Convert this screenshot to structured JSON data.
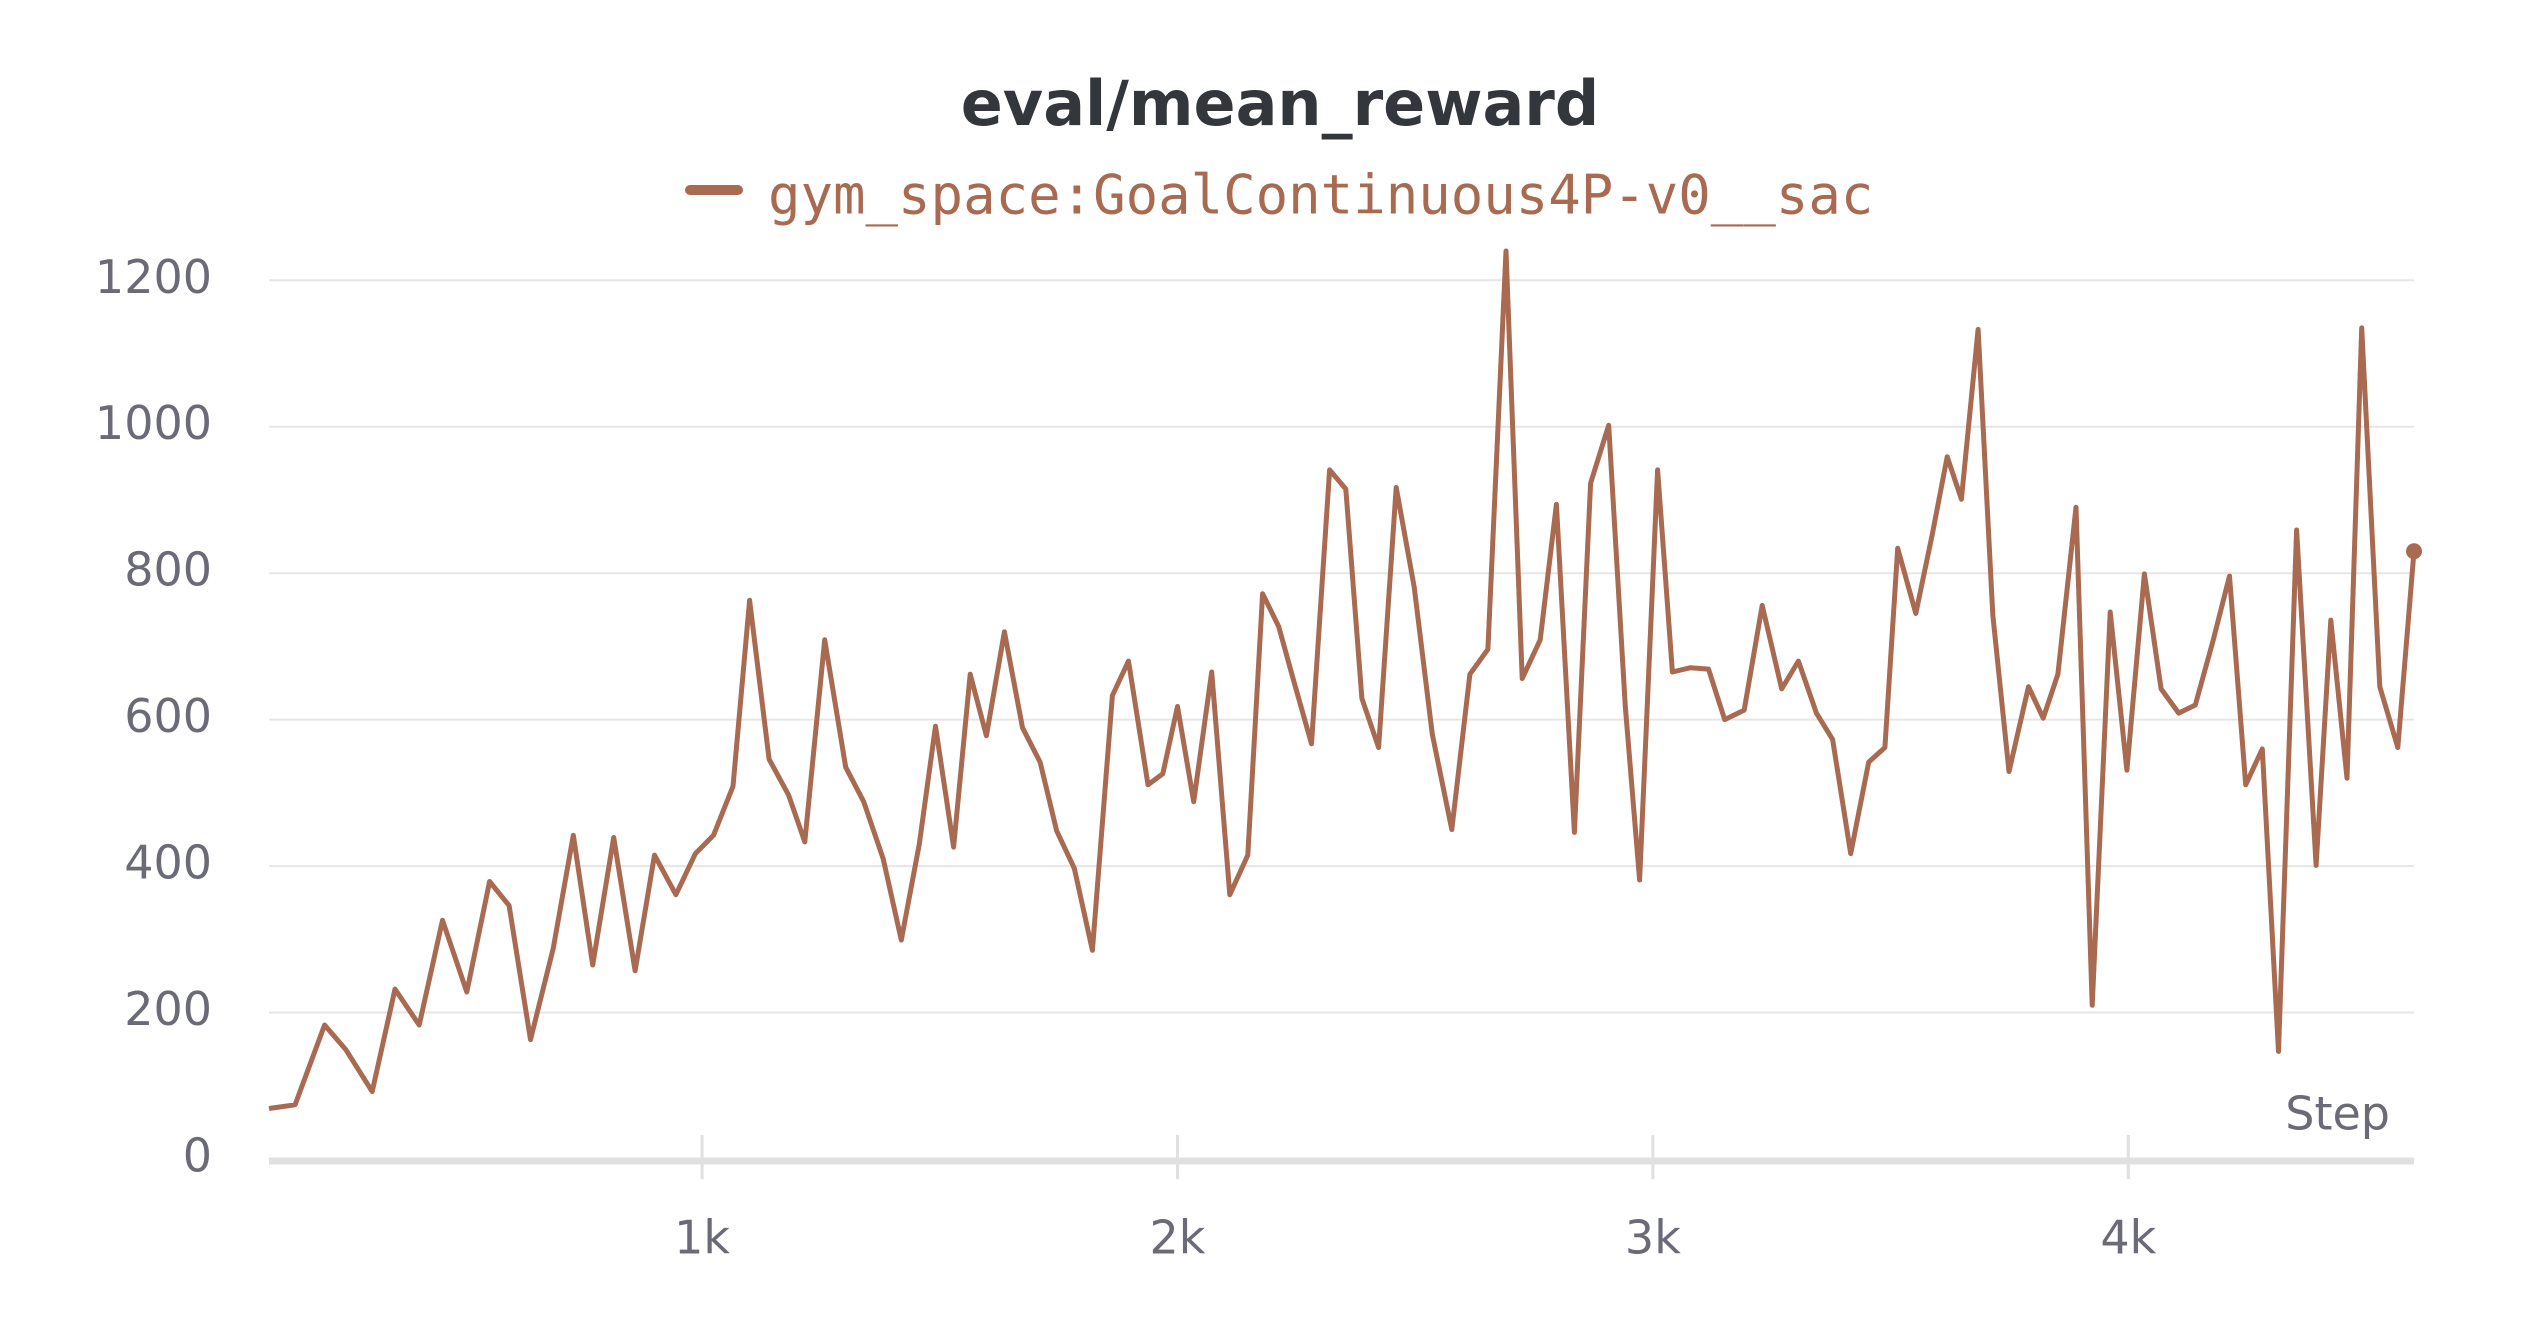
{
  "chart_data": {
    "type": "line",
    "title": "eval/mean_reward",
    "xlabel": "Step",
    "x": [
      89,
      144,
      206,
      251,
      306,
      354,
      405,
      454,
      505,
      553,
      594,
      639,
      687,
      729,
      770,
      814,
      859,
      900,
      945,
      986,
      1024,
      1065,
      1100,
      1141,
      1182,
      1216,
      1258,
      1302,
      1340,
      1381,
      1419,
      1457,
      1491,
      1529,
      1564,
      1598,
      1636,
      1674,
      1711,
      1746,
      1783,
      1821,
      1863,
      1897,
      1938,
      1969,
      2000,
      2034,
      2072,
      2110,
      2148,
      2179,
      2213,
      2244,
      2282,
      2320,
      2354,
      2388,
      2423,
      2460,
      2498,
      2536,
      2577,
      2615,
      2653,
      2691,
      2725,
      2763,
      2797,
      2835,
      2869,
      2907,
      2942,
      2972,
      3010,
      3041,
      3079,
      3117,
      3151,
      3192,
      3230,
      3271,
      3306,
      3344,
      3378,
      3416,
      3454,
      3488,
      3515,
      3553,
      3588,
      3619,
      3649,
      3684,
      3715,
      3749,
      3790,
      3821,
      3852,
      3890,
      3924,
      3962,
      3997,
      4034,
      4069,
      4106,
      4141,
      4178,
      4213,
      4247,
      4282,
      4316,
      4354,
      4395,
      4426,
      4460,
      4491,
      4529,
      4567,
      4601
    ],
    "series": [
      {
        "name": "gym_space:GoalContinuous4P-v0__sac",
        "color": "#a86a50",
        "values": [
          69,
          74,
          183,
          149,
          92,
          232,
          183,
          326,
          228,
          379,
          346,
          163,
          288,
          442,
          265,
          439,
          257,
          415,
          361,
          417,
          442,
          509,
          763,
          546,
          497,
          433,
          709,
          535,
          488,
          410,
          299,
          430,
          591,
          426,
          662,
          578,
          720,
          589,
          542,
          448,
          397,
          285,
          633,
          680,
          511,
          526,
          618,
          488,
          665,
          361,
          415,
          772,
          727,
          654,
          567,
          941,
          915,
          629,
          562,
          917,
          781,
          580,
          450,
          662,
          696,
          1240,
          656,
          709,
          894,
          446,
          923,
          1002,
          618,
          381,
          941,
          665,
          671,
          669,
          600,
          613,
          756,
          642,
          680,
          609,
          573,
          417,
          542,
          562,
          834,
          745,
          854,
          959,
          901,
          1133,
          743,
          529,
          645,
          602,
          662,
          890,
          210,
          747,
          531,
          799,
          642,
          609,
          620,
          707,
          796,
          511,
          560,
          147,
          859,
          401,
          736,
          520,
          1135,
          645,
          562,
          830
        ]
      }
    ],
    "xlim": [
      89,
      4601
    ],
    "ylim": [
      0,
      1240
    ],
    "xticks": [
      {
        "value": 1000,
        "label": "1k"
      },
      {
        "value": 2000,
        "label": "2k"
      },
      {
        "value": 3000,
        "label": "3k"
      },
      {
        "value": 4000,
        "label": "4k"
      }
    ],
    "yticks": [
      0,
      200,
      400,
      600,
      800,
      1000,
      1200
    ],
    "grid": true
  }
}
